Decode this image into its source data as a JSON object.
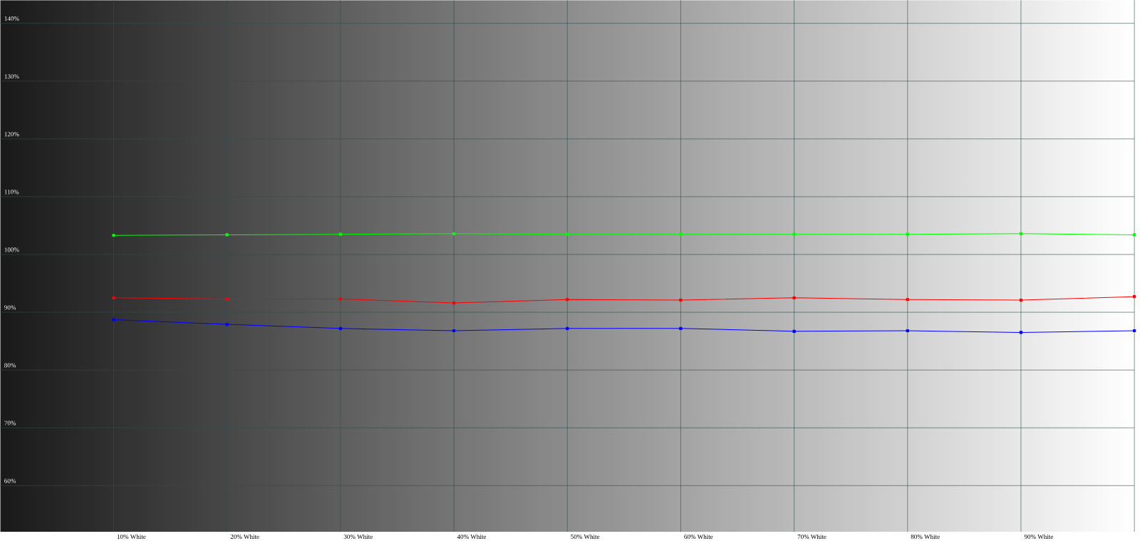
{
  "chart_data": {
    "type": "line",
    "categories": [
      "10% White",
      "20% White",
      "30% White",
      "40% White",
      "50% White",
      "60% White",
      "70% White",
      "80% White",
      "90% White",
      null
    ],
    "series": [
      {
        "color": "#00ff00",
        "values": [
          103.3,
          103.4,
          103.5,
          103.6,
          103.5,
          103.5,
          103.5,
          103.5,
          103.6,
          103.4
        ]
      },
      {
        "color": "#ff0000",
        "values": [
          92.5,
          92.3,
          92.3,
          91.6,
          92.2,
          92.1,
          92.5,
          92.2,
          92.1,
          92.7
        ]
      },
      {
        "color": "#0000ff",
        "values": [
          88.7,
          87.9,
          87.2,
          86.8,
          87.2,
          87.2,
          86.7,
          86.8,
          86.5,
          86.8
        ]
      }
    ],
    "ylim": [
      52,
      144
    ],
    "yticks": [
      {
        "value": 60,
        "label": "60%"
      },
      {
        "value": 70,
        "label": "70%"
      },
      {
        "value": 80,
        "label": "80%"
      },
      {
        "value": 90,
        "label": "90%"
      },
      {
        "value": 100,
        "label": "100%"
      },
      {
        "value": 110,
        "label": "110%"
      },
      {
        "value": 120,
        "label": "120%"
      },
      {
        "value": 130,
        "label": "130%"
      },
      {
        "value": 140,
        "label": "140%"
      }
    ],
    "grid": true,
    "marker": "square",
    "line_style": "solid"
  }
}
